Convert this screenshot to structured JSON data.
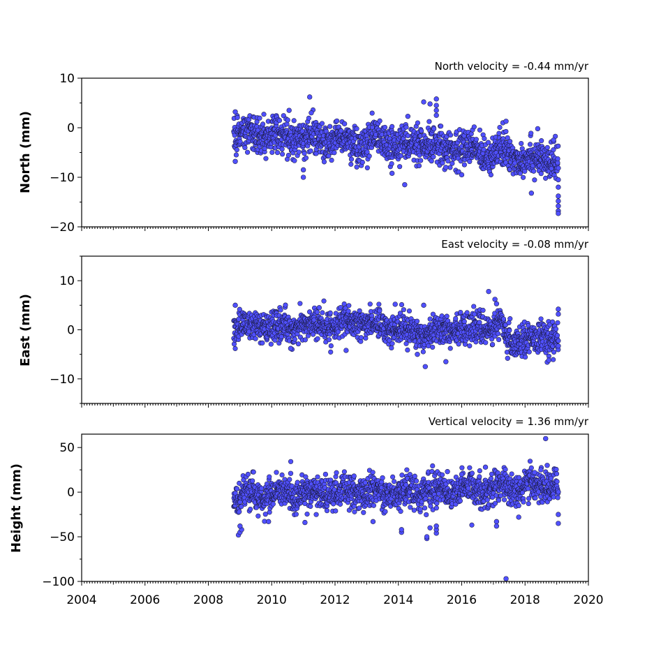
{
  "chart_data": [
    {
      "type": "scatter",
      "title": "North velocity = -0.44 mm/yr",
      "ylabel": "North (mm)",
      "xlim": [
        2004,
        2020
      ],
      "ylim": [
        -20,
        10
      ],
      "yticks": [
        -20,
        -10,
        0,
        10
      ],
      "xticks": [
        2004,
        2006,
        2008,
        2010,
        2012,
        2014,
        2016,
        2018,
        2020
      ],
      "series": [
        {
          "marker_color": "#5050ff",
          "trend": [
            [
              2008.8,
              -1.0
            ],
            [
              2010.0,
              -1.8
            ],
            [
              2012.0,
              -2.6
            ],
            [
              2014.0,
              -3.2
            ],
            [
              2016.0,
              -4.2
            ],
            [
              2017.5,
              -5.5
            ],
            [
              2019.05,
              -7.0
            ]
          ],
          "spread": 1.8,
          "points": [
            [
              2008.85,
              3.2
            ],
            [
              2008.85,
              -6.8
            ],
            [
              2011.2,
              6.2
            ],
            [
              2011.25,
              3.0
            ],
            [
              2010.55,
              3.5
            ],
            [
              2011.0,
              -10.0
            ],
            [
              2011.0,
              -8.5
            ],
            [
              2014.2,
              -11.5
            ],
            [
              2014.8,
              5.2
            ],
            [
              2015.0,
              4.8
            ],
            [
              2015.2,
              5.8
            ],
            [
              2015.2,
              4.5
            ],
            [
              2015.2,
              3.5
            ],
            [
              2015.2,
              2.5
            ],
            [
              2014.3,
              2.3
            ],
            [
              2015.5,
              -8.0
            ],
            [
              2016.0,
              -9.5
            ],
            [
              2018.2,
              -13.2
            ],
            [
              2018.4,
              -0.2
            ],
            [
              2017.3,
              1.0
            ],
            [
              2017.4,
              1.3
            ],
            [
              2019.05,
              -10.5
            ],
            [
              2019.05,
              -12.0
            ],
            [
              2019.05,
              -13.8
            ],
            [
              2019.05,
              -14.8
            ],
            [
              2019.05,
              -15.8
            ],
            [
              2019.05,
              -16.8
            ],
            [
              2019.05,
              -17.3
            ],
            [
              2012.3,
              0.8
            ],
            [
              2013.8,
              -9.2
            ],
            [
              2018.9,
              -2.5
            ]
          ]
        }
      ]
    },
    {
      "type": "scatter",
      "title": "East velocity = -0.08 mm/yr",
      "ylabel": "East (mm)",
      "xlim": [
        2004,
        2020
      ],
      "ylim": [
        -15,
        15
      ],
      "yticks": [
        -10,
        0,
        10
      ],
      "xticks": [
        2004,
        2006,
        2008,
        2010,
        2012,
        2014,
        2016,
        2018,
        2020
      ],
      "series": [
        {
          "marker_color": "#5050ff",
          "trend": [
            [
              2008.8,
              0.8
            ],
            [
              2010.0,
              0.5
            ],
            [
              2012.0,
              1.0
            ],
            [
              2013.0,
              1.5
            ],
            [
              2014.5,
              -0.5
            ],
            [
              2016.0,
              0.2
            ],
            [
              2017.3,
              0.6
            ],
            [
              2017.4,
              -2.0
            ],
            [
              2019.05,
              -1.5
            ]
          ],
          "spread": 1.5,
          "points": [
            [
              2008.85,
              5.0
            ],
            [
              2016.85,
              7.8
            ],
            [
              2017.05,
              6.2
            ],
            [
              2017.1,
              5.3
            ],
            [
              2014.85,
              -7.5
            ],
            [
              2015.5,
              -6.5
            ],
            [
              2018.7,
              -6.6
            ],
            [
              2018.75,
              -6.2
            ],
            [
              2017.45,
              -5.8
            ],
            [
              2014.6,
              -5.0
            ],
            [
              2012.35,
              -4.2
            ],
            [
              2013.9,
              5.2
            ],
            [
              2014.8,
              5.0
            ],
            [
              2019.05,
              4.2
            ],
            [
              2019.05,
              3.2
            ],
            [
              2019.05,
              -3.3
            ],
            [
              2010.6,
              -3.8
            ],
            [
              2011.5,
              4.5
            ]
          ]
        }
      ]
    },
    {
      "type": "scatter",
      "title": "Vertical velocity = 1.36 mm/yr",
      "ylabel": "Height (mm)",
      "xlim": [
        2004,
        2020
      ],
      "ylim": [
        -100,
        65
      ],
      "yticks": [
        -100,
        -50,
        0,
        50
      ],
      "xticks": [
        2004,
        2006,
        2008,
        2010,
        2012,
        2014,
        2016,
        2018,
        2020
      ],
      "xticklabels": [
        "2004",
        "2006",
        "2008",
        "2010",
        "2012",
        "2014",
        "2016",
        "2018",
        "2020"
      ],
      "series": [
        {
          "marker_color": "#5050ff",
          "trend": [
            [
              2008.8,
              -5.0
            ],
            [
              2010.0,
              -3.0
            ],
            [
              2012.0,
              -1.0
            ],
            [
              2014.0,
              0.0
            ],
            [
              2016.0,
              3.0
            ],
            [
              2018.0,
              6.0
            ],
            [
              2019.05,
              8.0
            ]
          ],
          "spread": 9.0,
          "points": [
            [
              2018.65,
              60.0
            ],
            [
              2018.7,
              30.0
            ],
            [
              2017.4,
              -97.0
            ],
            [
              2008.95,
              -48.0
            ],
            [
              2009.0,
              -45.0
            ],
            [
              2009.05,
              -42.0
            ],
            [
              2009.0,
              -38.0
            ],
            [
              2014.1,
              -45.0
            ],
            [
              2014.1,
              -42.0
            ],
            [
              2014.9,
              -52.0
            ],
            [
              2014.9,
              -50.0
            ],
            [
              2015.0,
              -40.0
            ],
            [
              2015.2,
              -46.0
            ],
            [
              2015.2,
              -42.0
            ],
            [
              2015.2,
              -38.0
            ],
            [
              2017.1,
              -38.0
            ],
            [
              2017.1,
              -33.0
            ],
            [
              2017.8,
              -28.0
            ],
            [
              2019.05,
              -35.0
            ],
            [
              2019.05,
              -25.0
            ],
            [
              2011.05,
              -34.0
            ],
            [
              2009.9,
              -33.0
            ],
            [
              2016.75,
              28.0
            ],
            [
              2015.55,
              23.0
            ],
            [
              2011.7,
              20.0
            ],
            [
              2013.5,
              16.0
            ],
            [
              2010.6,
              21.0
            ],
            [
              2012.6,
              18.0
            ],
            [
              2018.3,
              22.0
            ],
            [
              2018.5,
              25.0
            ],
            [
              2016.0,
              20.0
            ],
            [
              2013.2,
              -33.0
            ]
          ]
        }
      ]
    }
  ]
}
